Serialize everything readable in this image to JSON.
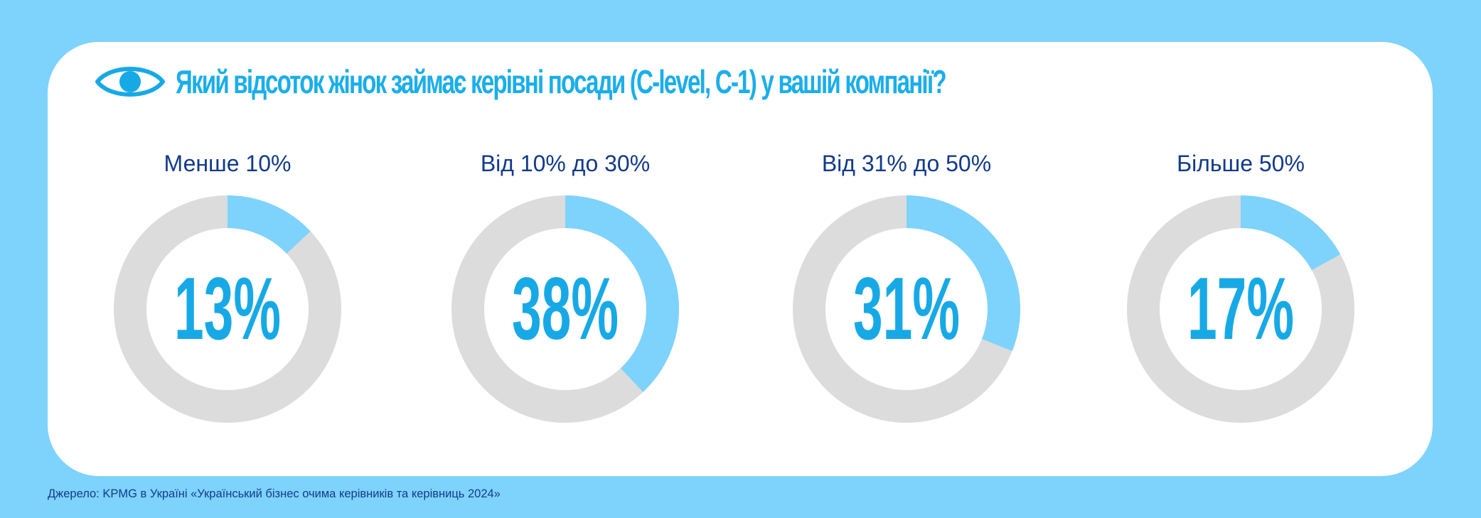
{
  "title": "Який відсоток жінок займає керівні посади (C-level, C-1) у вашій компанії?",
  "icons": {
    "title_icon": "eye-icon"
  },
  "colors": {
    "background": "#7dd3fc",
    "card": "#ffffff",
    "accent": "#17a9e6",
    "segment": "#7dd3fc",
    "track": "#dcdcdc",
    "label": "#123a8c"
  },
  "chart_data": {
    "type": "donut",
    "title": "Який відсоток жінок займає керівні посади (C-level, C-1) у вашій компанії?",
    "categories": [
      "Менше 10%",
      "Від 10% до 30%",
      "Від 31% до 50%",
      "Більше 50%"
    ],
    "values": [
      13,
      38,
      31,
      17
    ],
    "unit": "%",
    "value_labels": [
      "13%",
      "38%",
      "31%",
      "17%"
    ]
  },
  "source": "Джерело: KPMG в Україні «Український бізнес очима керівників та керівниць 2024»"
}
